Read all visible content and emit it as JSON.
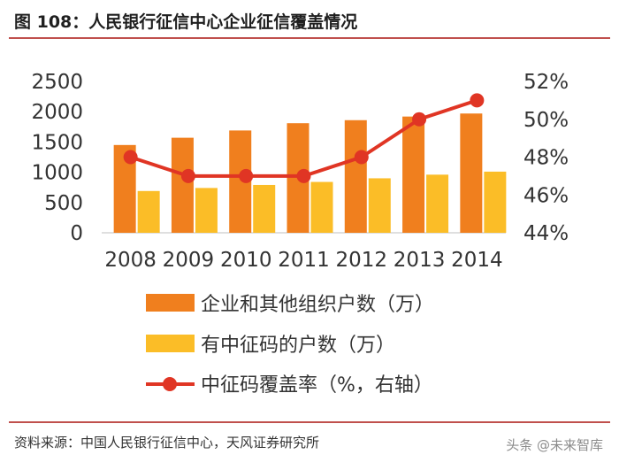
{
  "header": {
    "title": "图 108：人民银行征信中心企业征信覆盖情况"
  },
  "chart_data": {
    "type": "bar+line",
    "categories": [
      "2008",
      "2009",
      "2010",
      "2011",
      "2012",
      "2013",
      "2014"
    ],
    "series": [
      {
        "name": "企业和其他组织户数（万）",
        "kind": "bar",
        "axis": "left",
        "color": "#f07f1e",
        "values": [
          1450,
          1570,
          1690,
          1810,
          1860,
          1920,
          1970
        ]
      },
      {
        "name": "有中征码的户数（万）",
        "kind": "bar",
        "axis": "left",
        "color": "#fbbd27",
        "values": [
          690,
          740,
          790,
          840,
          900,
          960,
          1010
        ]
      },
      {
        "name": "中征码覆盖率（%，右轴）",
        "kind": "line",
        "axis": "right",
        "color": "#e03524",
        "values": [
          48,
          47,
          47,
          47,
          48,
          50,
          51
        ]
      }
    ],
    "y_left": {
      "min": 0,
      "max": 2500,
      "ticks": [
        0,
        500,
        1000,
        1500,
        2000,
        2500
      ]
    },
    "y_right": {
      "min": 44,
      "max": 52,
      "ticks": [
        44,
        46,
        48,
        50,
        52
      ],
      "suffix": "%"
    },
    "legend_position": "bottom"
  },
  "footer": {
    "source": "资料来源：中国人民银行征信中心，天风证券研究所",
    "watermark": "头条 @未来智库"
  }
}
